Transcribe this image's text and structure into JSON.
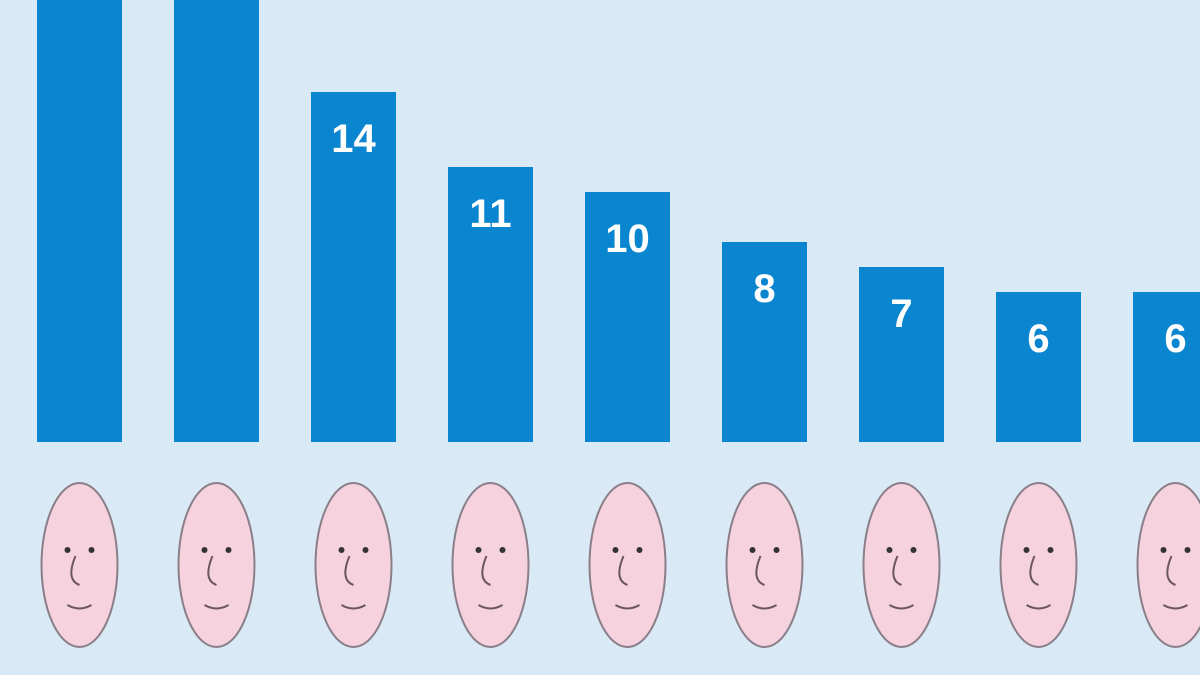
{
  "chart_data": {
    "type": "bar",
    "title": "",
    "xlabel": "",
    "ylabel": "",
    "categories": [
      "",
      "",
      "",
      "",
      "",
      "",
      "",
      "",
      ""
    ],
    "values": [
      null,
      null,
      14,
      11,
      10,
      8,
      7,
      6,
      6
    ],
    "data_labels": [
      "",
      "",
      "14",
      "11",
      "10",
      "8",
      "7",
      "6",
      "6"
    ],
    "notes_visible": "first two bars extend beyond top of image; their labels are cut off",
    "category_markers": "caricature face below each bar",
    "ylim": [
      0,
      17.7
    ],
    "grid": false,
    "legend": "none",
    "colors": {
      "bar": "#0a85cf",
      "background": "#d9eaf6",
      "label": "#ffffff",
      "skin": "#f6d2df",
      "outline": "#8a7f88"
    }
  }
}
